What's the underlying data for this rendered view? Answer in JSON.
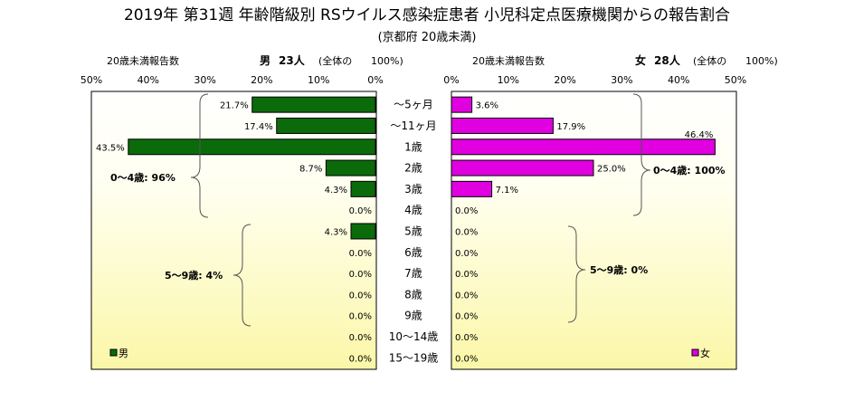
{
  "title": "2019年 第31週 年齢階級別 RSウイルス感染症患者 小児科定点医療機関からの報告割合",
  "subtitle": "(京都府 20歳未満)",
  "male": {
    "header_count_label": "20歳未満報告数",
    "header_sex": "男",
    "header_total": "23人",
    "header_note": "(全体の",
    "header_pct": "100%)",
    "legend": "男",
    "color": "#0b6b0b"
  },
  "female": {
    "header_count_label": "20歳未満報告数",
    "header_sex": "女",
    "header_total": "28人",
    "header_note": "(全体の",
    "header_pct": "100%)",
    "legend": "女",
    "color": "#e000e0"
  },
  "groups": {
    "male_0_4": "0～4歳: 96%",
    "male_5_9": "5～9歳: 4%",
    "female_0_4": "0～4歳: 100%",
    "female_5_9": "5～9歳: 0%"
  },
  "chart_data": {
    "type": "bar",
    "orientation": "horizontal-butterfly",
    "title": "2019年 第31週 年齢階級別 RSウイルス感染症患者 小児科定点医療機関からの報告割合",
    "subtitle": "(京都府 20歳未満)",
    "categories": [
      "～5ヶ月",
      "～11ヶ月",
      "1歳",
      "2歳",
      "3歳",
      "4歳",
      "5歳",
      "6歳",
      "7歳",
      "8歳",
      "9歳",
      "10～14歳",
      "15～19歳"
    ],
    "series": [
      {
        "name": "男",
        "values": [
          21.7,
          17.4,
          43.5,
          8.7,
          4.3,
          0.0,
          4.3,
          0.0,
          0.0,
          0.0,
          0.0,
          0.0,
          0.0
        ],
        "labels": [
          "21.7%",
          "17.4%",
          "43.5%",
          "8.7%",
          "4.3%",
          "0.0%",
          "4.3%",
          "0.0%",
          "0.0%",
          "0.0%",
          "0.0%",
          "0.0%",
          "0.0%"
        ]
      },
      {
        "name": "女",
        "values": [
          3.6,
          17.9,
          46.4,
          25.0,
          7.1,
          0.0,
          0.0,
          0.0,
          0.0,
          0.0,
          0.0,
          0.0,
          0.0
        ],
        "labels": [
          "3.6%",
          "17.9%",
          "46.4%",
          "25.0%",
          "7.1%",
          "0.0%",
          "0.0%",
          "0.0%",
          "0.0%",
          "0.0%",
          "0.0%",
          "0.0%",
          "0.0%"
        ]
      }
    ],
    "xlim": [
      0,
      50
    ],
    "tick_labels": [
      "0%",
      "10%",
      "20%",
      "30%",
      "40%",
      "50%"
    ],
    "tick_labels_male": [
      "50%",
      "40%",
      "30%",
      "20%",
      "10%",
      "0%"
    ],
    "legend_position": "bottom-inside",
    "grid": false
  }
}
